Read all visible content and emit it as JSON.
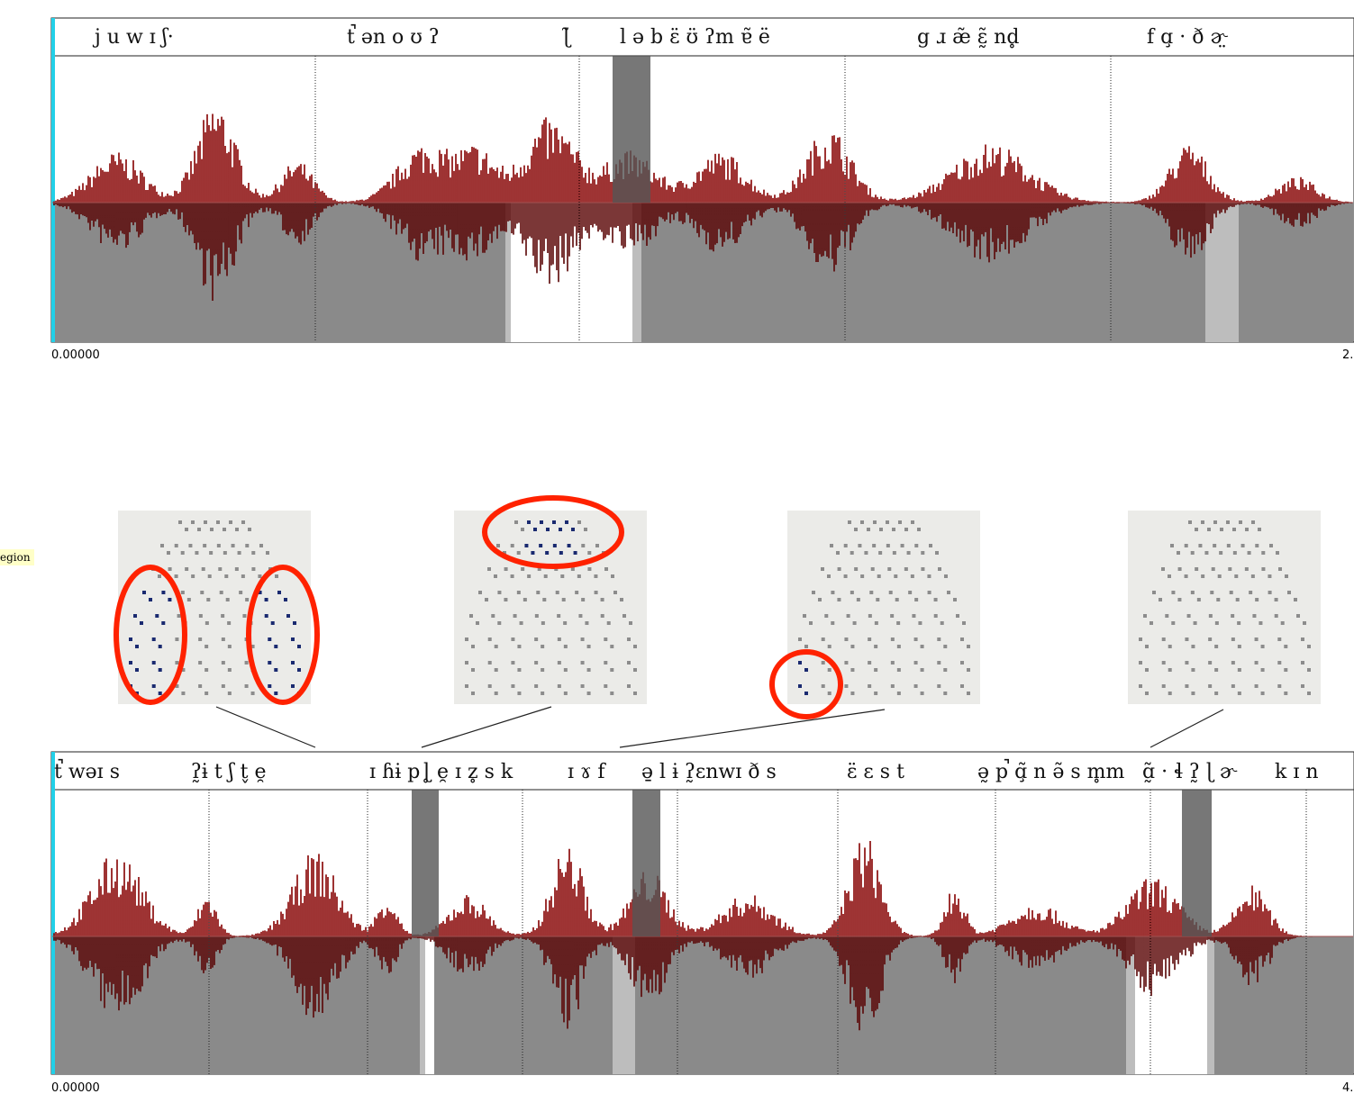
{
  "top_panel": {
    "segments": [
      "j u w ɪ ʃ·",
      "t̚ ən o ʊ ʔ",
      "ɭ̃",
      "l ə b ɛ̈ ʊ̈ ʔm ɐ̃ ë",
      "g ɹ æ̃ ɛ̰̃ nd̥",
      "f ɑ̧ ·  ð ɚ̤"
    ],
    "time_start": "0.00000",
    "time_end": "2."
  },
  "side_label": "egion",
  "bottom_panel": {
    "segments": [
      "t̚ wəɪ s",
      "ʔ̰ɨ t ʃ t̬ e̯",
      "ɪ ɦɨ p",
      "ɭ̥ e̯ ɪ z̥ s k",
      "ɪ ɤ f",
      "ə̱ l ɨ ʔ̰ɛnwɪ ð s",
      "ɛ̈ ɛ s t",
      "ə̰ p̚ ɑ̧̃ n ə̃ s m̥m",
      "ɑ̰̃ · ɬ ʔ̰ ɭ ɚ",
      "k ɪ n"
    ],
    "time_start": "0.00000",
    "time_end": "4."
  }
}
